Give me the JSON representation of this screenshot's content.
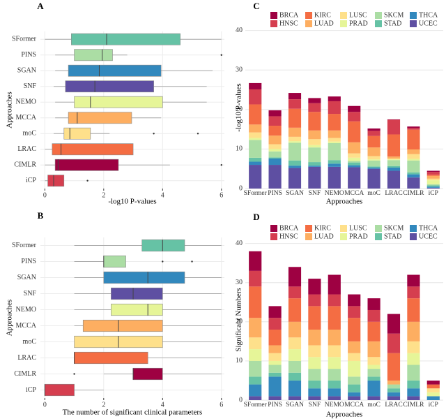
{
  "chart_data": [
    {
      "type": "box",
      "panel": "A",
      "xlabel": "-log10 P-values",
      "ylabel": "Approaches",
      "xlim": [
        -0.15,
        6.1
      ],
      "xticks": [
        0,
        2,
        4,
        6
      ],
      "grid": true,
      "boxes": [
        {
          "name": "SFormer",
          "color": "#66c2a5",
          "min": 0,
          "q1": 0.9,
          "median": 2.1,
          "q3": 4.6,
          "max": 6
        },
        {
          "name": "PINS",
          "color": "#abdda4",
          "min": 0.35,
          "q1": 1.0,
          "median": 1.95,
          "q3": 2.3,
          "max": 2.8,
          "outliers": [
            6
          ]
        },
        {
          "name": "SGAN",
          "color": "#3288bd",
          "min": 0.35,
          "q1": 0.8,
          "median": 1.85,
          "q3": 3.95,
          "max": 5.7
        },
        {
          "name": "SNF",
          "color": "#5e4fa2",
          "min": 0.3,
          "q1": 0.7,
          "median": 1.7,
          "q3": 3.7,
          "max": 5.5
        },
        {
          "name": "NEMO",
          "color": "#e6f598",
          "min": 0.35,
          "q1": 1.0,
          "median": 1.55,
          "q3": 4.0,
          "max": 5.5
        },
        {
          "name": "MCCA",
          "color": "#fdae61",
          "min": 0.35,
          "q1": 0.8,
          "median": 1.1,
          "q3": 2.95,
          "max": 3.95
        },
        {
          "name": "moC",
          "color": "#fee08b",
          "min": 0.3,
          "q1": 0.65,
          "median": 0.85,
          "q3": 1.55,
          "max": 2.2,
          "outliers": [
            3.7,
            5.2
          ]
        },
        {
          "name": "LRAC",
          "color": "#f46d43",
          "min": 0,
          "q1": 0.25,
          "median": 0.55,
          "q3": 3.0,
          "max": 3.0
        },
        {
          "name": "CIMLR",
          "color": "#9e0142",
          "min": 0,
          "q1": 0.35,
          "median": 0.45,
          "q3": 2.5,
          "max": 4.25,
          "outliers": [
            6
          ]
        },
        {
          "name": "iCP",
          "color": "#d53e4f",
          "min": 0,
          "q1": 0.1,
          "median": 0.3,
          "q3": 0.65,
          "max": 0.65,
          "outliers": [
            1.45
          ]
        }
      ]
    },
    {
      "type": "box",
      "panel": "B",
      "xlabel": "The number of significant clinical parameters",
      "ylabel": "Approaches",
      "xlim": [
        -0.15,
        6.1
      ],
      "xticks": [
        0,
        2,
        4,
        6
      ],
      "grid": true,
      "boxes": [
        {
          "name": "SFormer",
          "color": "#66c2a5",
          "min": 1,
          "q1": 3.3,
          "median": 4,
          "q3": 4.75,
          "max": 6
        },
        {
          "name": "PINS",
          "color": "#abdda4",
          "min": 1,
          "q1": 2,
          "median": 2,
          "q3": 2.75,
          "max": 2.75,
          "outliers": [
            4,
            5
          ]
        },
        {
          "name": "SGAN",
          "color": "#3288bd",
          "min": 1,
          "q1": 2,
          "median": 3.5,
          "q3": 4.75,
          "max": 6
        },
        {
          "name": "SNF",
          "color": "#5e4fa2",
          "min": 1,
          "q1": 2.25,
          "median": 3,
          "q3": 4,
          "max": 6
        },
        {
          "name": "NEMO",
          "color": "#e6f598",
          "min": 1,
          "q1": 2.25,
          "median": 3.5,
          "q3": 4,
          "max": 6
        },
        {
          "name": "MCCA",
          "color": "#fdae61",
          "min": 1,
          "q1": 1.3,
          "median": 2.5,
          "q3": 4,
          "max": 6
        },
        {
          "name": "moC",
          "color": "#fee08b",
          "min": 1,
          "q1": 1,
          "median": 2.5,
          "q3": 4,
          "max": 6
        },
        {
          "name": "LRAC",
          "color": "#f46d43",
          "min": 1,
          "q1": 1,
          "median": 1,
          "q3": 3.5,
          "max": 6
        },
        {
          "name": "CIMLR",
          "color": "#9e0142",
          "min": 2,
          "q1": 3,
          "median": 3,
          "q3": 4,
          "max": 6,
          "outliers": [
            1
          ]
        },
        {
          "name": "iCP",
          "color": "#d53e4f",
          "min": 0,
          "q1": 0,
          "median": 0,
          "q3": 1,
          "max": 2
        }
      ]
    },
    {
      "type": "stacked-bar",
      "panel": "C",
      "xlabel": "Approaches",
      "ylabel": "-log10 P-values",
      "ylim": [
        0,
        41
      ],
      "yticks": [
        0,
        10,
        20,
        30,
        40
      ],
      "grid": true,
      "categories": [
        "SFormer",
        "PINS",
        "SGAN",
        "SNF",
        "NEMO",
        "MCCA",
        "moC",
        "LRAC",
        "CIMLR",
        "iCP"
      ],
      "series": [
        {
          "name": "BRCA",
          "color": "#9e0142",
          "values": [
            1.6,
            1.5,
            1.6,
            1.3,
            1.2,
            1.5,
            0.6,
            0.1,
            0.4,
            0.3
          ]
        },
        {
          "name": "HNSC",
          "color": "#d53e4f",
          "values": [
            3.8,
            2.4,
            2.4,
            2.2,
            3.2,
            2.4,
            1.3,
            3.7,
            0.4,
            0.7
          ]
        },
        {
          "name": "KIRC",
          "color": "#f46d43",
          "values": [
            5.1,
            2.5,
            4.8,
            4.7,
            4.2,
            5.3,
            2.9,
            5.6,
            5.0,
            0.3
          ]
        },
        {
          "name": "LUAD",
          "color": "#fdae61",
          "values": [
            2.0,
            2.2,
            2.3,
            2.2,
            1.9,
            2.8,
            2.2,
            0.5,
            1.2,
            0.7
          ]
        },
        {
          "name": "LUSC",
          "color": "#fee08b",
          "values": [
            1.4,
            1.2,
            1.1,
            1.5,
            0.9,
            1.1,
            0.8,
            0.2,
            1.2,
            0.4
          ]
        },
        {
          "name": "PRAD",
          "color": "#e6f598",
          "values": [
            0.5,
            0.6,
            0.4,
            0.6,
            0.4,
            0.8,
            0.3,
            0.2,
            0.4,
            1.0
          ]
        },
        {
          "name": "SKCM",
          "color": "#abdda4",
          "values": [
            4.5,
            1.5,
            4.5,
            3.7,
            4.3,
            0.4,
            1.5,
            1.5,
            3.0,
            0.3
          ]
        },
        {
          "name": "STAD",
          "color": "#66c2a5",
          "values": [
            1.0,
            0.3,
            1.3,
            0.9,
            0.9,
            0.7,
            0.3,
            0.4,
            0.5,
            0.3
          ]
        },
        {
          "name": "THCA",
          "color": "#3288bd",
          "values": [
            0.8,
            1.6,
            0.6,
            0.3,
            0.8,
            0.5,
            0.3,
            0.8,
            0.8,
            0.3
          ]
        },
        {
          "name": "UCEC",
          "color": "#5e4fa2",
          "values": [
            6.0,
            6.0,
            5.2,
            5.5,
            5.5,
            5.4,
            5.0,
            4.5,
            2.8,
            0.2
          ]
        }
      ]
    },
    {
      "type": "stacked-bar",
      "panel": "D",
      "xlabel": "Approaches",
      "ylabel": "Significant Numbers",
      "ylim": [
        0,
        41
      ],
      "yticks": [
        0,
        10,
        20,
        30,
        40
      ],
      "grid": true,
      "categories": [
        "SFormer",
        "PINS",
        "SGAN",
        "SNF",
        "NEMO",
        "MCCA",
        "moC",
        "LRAC",
        "CIMLR",
        "iCP"
      ],
      "series": [
        {
          "name": "BRCA",
          "color": "#9e0142",
          "values": [
            5,
            3,
            5,
            4,
            5,
            3,
            3,
            5,
            3,
            1
          ]
        },
        {
          "name": "HNSC",
          "color": "#d53e4f",
          "values": [
            4,
            3,
            3,
            3,
            3,
            3,
            3,
            5,
            3,
            0
          ]
        },
        {
          "name": "KIRC",
          "color": "#f46d43",
          "values": [
            8,
            4,
            6,
            6,
            6,
            6,
            5,
            7,
            6,
            1
          ]
        },
        {
          "name": "LUAD",
          "color": "#fdae61",
          "values": [
            5,
            2,
            4,
            4,
            4,
            3,
            4,
            1,
            5,
            0
          ]
        },
        {
          "name": "LUSC",
          "color": "#fee08b",
          "values": [
            3,
            2,
            3,
            3,
            3,
            2,
            2,
            0,
            3,
            1
          ]
        },
        {
          "name": "PRAD",
          "color": "#e6f598",
          "values": [
            3,
            1,
            3,
            3,
            3,
            4,
            1,
            0,
            3,
            1
          ]
        },
        {
          "name": "SKCM",
          "color": "#abdda4",
          "values": [
            4,
            2,
            3,
            3,
            3,
            2,
            2,
            1,
            4,
            0
          ]
        },
        {
          "name": "STAD",
          "color": "#66c2a5",
          "values": [
            2,
            1,
            2,
            2,
            2,
            2,
            1,
            1,
            2,
            0
          ]
        },
        {
          "name": "THCA",
          "color": "#3288bd",
          "values": [
            3,
            5,
            4,
            2,
            2,
            1,
            4,
            1,
            2,
            1
          ]
        },
        {
          "name": "UCEC",
          "color": "#5e4fa2",
          "values": [
            1,
            1,
            1,
            1,
            1,
            1,
            1,
            1,
            1,
            0
          ]
        }
      ]
    }
  ]
}
